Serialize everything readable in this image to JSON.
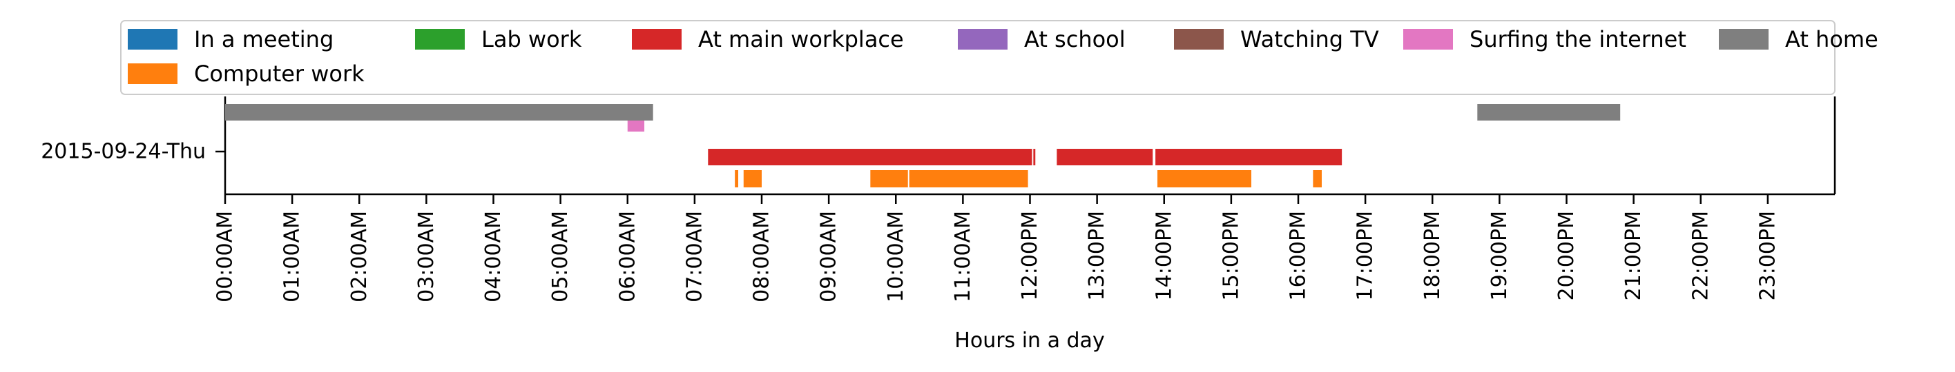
{
  "chart_data": {
    "type": "timeline",
    "xlabel": "Hours in a day",
    "ylabel": "",
    "xlim": [
      0,
      24
    ],
    "x_ticks": [
      "00:00AM",
      "01:00AM",
      "02:00AM",
      "03:00AM",
      "04:00AM",
      "05:00AM",
      "06:00AM",
      "07:00AM",
      "08:00AM",
      "09:00AM",
      "10:00AM",
      "11:00AM",
      "12:00PM",
      "13:00PM",
      "14:00PM",
      "15:00PM",
      "16:00PM",
      "17:00PM",
      "18:00PM",
      "19:00PM",
      "20:00PM",
      "21:00PM",
      "22:00PM",
      "23:00PM"
    ],
    "categories": [
      "2015-09-24-Thu"
    ],
    "legend_placement": "top",
    "series": [
      {
        "name": "In a meeting",
        "color": "#1f77b4",
        "intervals": []
      },
      {
        "name": "Computer work",
        "color": "#ff7f0e",
        "intervals": [
          [
            7.6,
            7.65
          ],
          [
            7.73,
            8.0
          ],
          [
            9.62,
            10.18
          ],
          [
            10.2,
            11.97
          ],
          [
            13.9,
            15.3
          ],
          [
            16.22,
            16.35
          ]
        ]
      },
      {
        "name": "Lab work",
        "color": "#2ca02c",
        "intervals": []
      },
      {
        "name": "At main workplace",
        "color": "#d62728",
        "intervals": [
          [
            7.2,
            12.03
          ],
          [
            12.05,
            12.08
          ],
          [
            12.4,
            13.83
          ],
          [
            13.87,
            16.65
          ]
        ]
      },
      {
        "name": "At school",
        "color": "#9467bd",
        "intervals": []
      },
      {
        "name": "Watching TV",
        "color": "#8c564b",
        "intervals": []
      },
      {
        "name": "Surfing the internet",
        "color": "#e377c2",
        "intervals": [
          [
            6.0,
            6.25
          ]
        ]
      },
      {
        "name": "At home",
        "color": "#7f7f7f",
        "intervals": [
          [
            0.0,
            6.38
          ],
          [
            18.67,
            20.8
          ]
        ]
      }
    ]
  }
}
